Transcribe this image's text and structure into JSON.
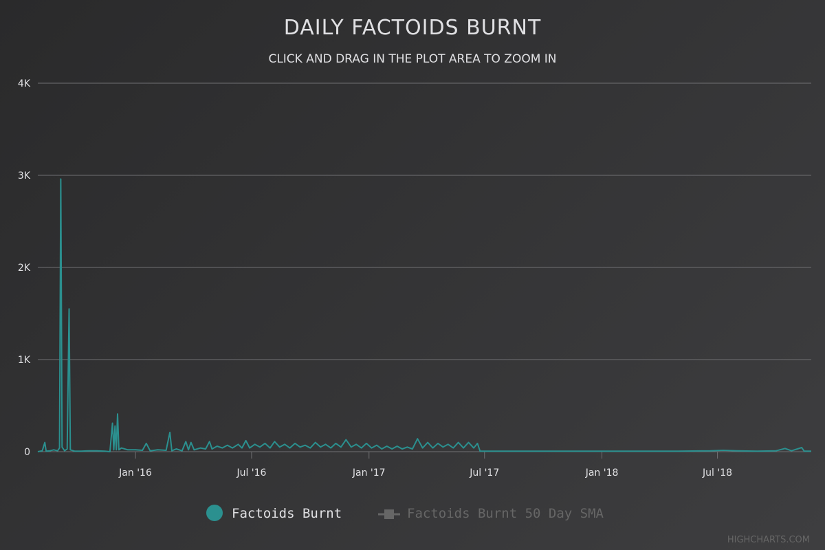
{
  "chart_data": {
    "type": "line",
    "title": "DAILY FACTOIDS BURNT",
    "subtitle": "CLICK AND DRAG IN THE PLOT AREA TO ZOOM IN",
    "xlabel": "",
    "ylabel": "",
    "ylim": [
      0,
      4000
    ],
    "xlim": [
      "2015-08-01",
      "2018-11-25"
    ],
    "y_ticks": [
      {
        "value": 0,
        "label": "0"
      },
      {
        "value": 1000,
        "label": "1K"
      },
      {
        "value": 2000,
        "label": "2K"
      },
      {
        "value": 3000,
        "label": "3K"
      },
      {
        "value": 4000,
        "label": "4K"
      }
    ],
    "x_ticks": [
      {
        "date": "2016-01-01",
        "label": "Jan '16"
      },
      {
        "date": "2016-07-01",
        "label": "Jul '16"
      },
      {
        "date": "2017-01-01",
        "label": "Jan '17"
      },
      {
        "date": "2017-07-01",
        "label": "Jul '17"
      },
      {
        "date": "2018-01-01",
        "label": "Jan '18"
      },
      {
        "date": "2018-07-01",
        "label": "Jul '18"
      }
    ],
    "grid": true,
    "legend_position": "bottom",
    "series": [
      {
        "name": "Factoids Burnt",
        "color": "#2b908f",
        "visible": true,
        "points": [
          [
            "2015-08-01",
            0
          ],
          [
            "2015-08-08",
            10
          ],
          [
            "2015-08-12",
            100
          ],
          [
            "2015-08-14",
            5
          ],
          [
            "2015-08-20",
            10
          ],
          [
            "2015-08-26",
            20
          ],
          [
            "2015-09-01",
            10
          ],
          [
            "2015-09-04",
            40
          ],
          [
            "2015-09-06",
            2960
          ],
          [
            "2015-09-08",
            50
          ],
          [
            "2015-09-12",
            10
          ],
          [
            "2015-09-16",
            30
          ],
          [
            "2015-09-19",
            1550
          ],
          [
            "2015-09-21",
            20
          ],
          [
            "2015-09-28",
            5
          ],
          [
            "2015-10-08",
            5
          ],
          [
            "2015-10-20",
            10
          ],
          [
            "2015-11-01",
            10
          ],
          [
            "2015-11-14",
            5
          ],
          [
            "2015-11-22",
            0
          ],
          [
            "2015-11-26",
            310
          ],
          [
            "2015-11-28",
            20
          ],
          [
            "2015-11-30",
            280
          ],
          [
            "2015-12-02",
            20
          ],
          [
            "2015-12-04",
            410
          ],
          [
            "2015-12-06",
            20
          ],
          [
            "2015-12-10",
            40
          ],
          [
            "2015-12-20",
            20
          ],
          [
            "2016-01-01",
            20
          ],
          [
            "2016-01-12",
            15
          ],
          [
            "2016-01-18",
            90
          ],
          [
            "2016-01-24",
            10
          ],
          [
            "2016-02-05",
            20
          ],
          [
            "2016-02-18",
            15
          ],
          [
            "2016-02-24",
            210
          ],
          [
            "2016-02-27",
            10
          ],
          [
            "2016-03-05",
            30
          ],
          [
            "2016-03-14",
            10
          ],
          [
            "2016-03-20",
            110
          ],
          [
            "2016-03-24",
            20
          ],
          [
            "2016-03-28",
            100
          ],
          [
            "2016-04-02",
            20
          ],
          [
            "2016-04-12",
            40
          ],
          [
            "2016-04-20",
            30
          ],
          [
            "2016-04-26",
            110
          ],
          [
            "2016-04-30",
            30
          ],
          [
            "2016-05-08",
            60
          ],
          [
            "2016-05-16",
            40
          ],
          [
            "2016-05-24",
            70
          ],
          [
            "2016-06-01",
            40
          ],
          [
            "2016-06-10",
            80
          ],
          [
            "2016-06-16",
            40
          ],
          [
            "2016-06-22",
            120
          ],
          [
            "2016-06-28",
            40
          ],
          [
            "2016-07-06",
            80
          ],
          [
            "2016-07-14",
            50
          ],
          [
            "2016-07-22",
            90
          ],
          [
            "2016-07-30",
            40
          ],
          [
            "2016-08-06",
            110
          ],
          [
            "2016-08-14",
            50
          ],
          [
            "2016-08-22",
            80
          ],
          [
            "2016-08-30",
            40
          ],
          [
            "2016-09-07",
            90
          ],
          [
            "2016-09-15",
            50
          ],
          [
            "2016-09-23",
            70
          ],
          [
            "2016-10-01",
            40
          ],
          [
            "2016-10-09",
            100
          ],
          [
            "2016-10-17",
            50
          ],
          [
            "2016-10-25",
            80
          ],
          [
            "2016-11-02",
            40
          ],
          [
            "2016-11-10",
            90
          ],
          [
            "2016-11-18",
            50
          ],
          [
            "2016-11-26",
            130
          ],
          [
            "2016-12-04",
            50
          ],
          [
            "2016-12-12",
            80
          ],
          [
            "2016-12-20",
            40
          ],
          [
            "2016-12-28",
            90
          ],
          [
            "2017-01-05",
            40
          ],
          [
            "2017-01-13",
            70
          ],
          [
            "2017-01-21",
            30
          ],
          [
            "2017-01-29",
            60
          ],
          [
            "2017-02-06",
            30
          ],
          [
            "2017-02-14",
            60
          ],
          [
            "2017-02-22",
            30
          ],
          [
            "2017-03-02",
            50
          ],
          [
            "2017-03-10",
            30
          ],
          [
            "2017-03-18",
            140
          ],
          [
            "2017-03-26",
            40
          ],
          [
            "2017-04-03",
            100
          ],
          [
            "2017-04-11",
            40
          ],
          [
            "2017-04-19",
            90
          ],
          [
            "2017-04-27",
            50
          ],
          [
            "2017-05-05",
            80
          ],
          [
            "2017-05-13",
            40
          ],
          [
            "2017-05-21",
            100
          ],
          [
            "2017-05-29",
            40
          ],
          [
            "2017-06-06",
            100
          ],
          [
            "2017-06-14",
            40
          ],
          [
            "2017-06-20",
            90
          ],
          [
            "2017-06-24",
            5
          ],
          [
            "2017-07-15",
            5
          ],
          [
            "2017-09-01",
            5
          ],
          [
            "2017-11-01",
            5
          ],
          [
            "2018-01-01",
            5
          ],
          [
            "2018-03-01",
            5
          ],
          [
            "2018-05-01",
            5
          ],
          [
            "2018-06-20",
            10
          ],
          [
            "2018-07-10",
            15
          ],
          [
            "2018-08-01",
            10
          ],
          [
            "2018-09-01",
            5
          ],
          [
            "2018-10-01",
            10
          ],
          [
            "2018-10-15",
            35
          ],
          [
            "2018-10-25",
            10
          ],
          [
            "2018-11-10",
            45
          ],
          [
            "2018-11-14",
            5
          ],
          [
            "2018-11-25",
            5
          ]
        ]
      },
      {
        "name": "Factoids Burnt 50 Day SMA",
        "color": "#666666",
        "visible": false,
        "points": []
      }
    ]
  },
  "credits": "HIGHCHARTS.COM"
}
